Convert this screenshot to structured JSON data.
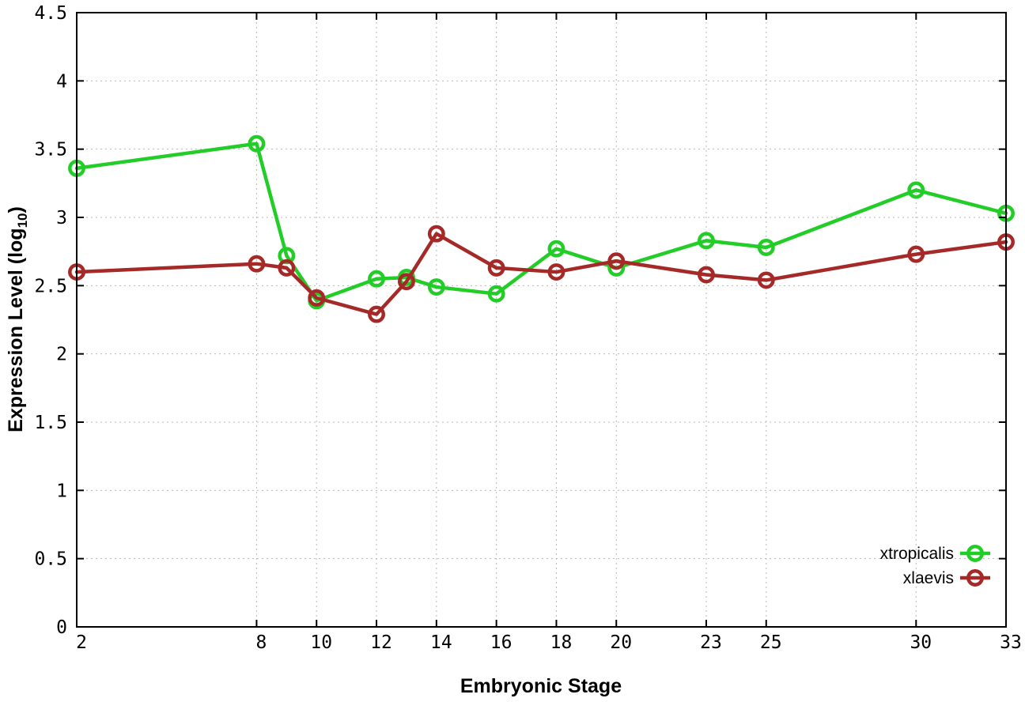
{
  "chart_data": {
    "type": "line",
    "title": "",
    "xlabel": "Embryonic Stage",
    "ylabel": "Expression Level (log10)",
    "ylabel_parts": {
      "prefix": "Expression Level (log",
      "subscript": "10",
      "suffix": ")"
    },
    "x": [
      2,
      8,
      9,
      10,
      12,
      13,
      14,
      16,
      18,
      20,
      23,
      25,
      30,
      33
    ],
    "series": [
      {
        "name": "xtropicalis",
        "color": "#23cd27",
        "values": [
          3.36,
          3.54,
          2.72,
          2.39,
          2.55,
          2.56,
          2.49,
          2.44,
          2.77,
          2.63,
          2.83,
          2.78,
          3.2,
          3.03
        ]
      },
      {
        "name": "xlaevis",
        "color": "#a52a27",
        "values": [
          2.6,
          2.66,
          2.63,
          2.41,
          2.29,
          2.53,
          2.88,
          2.63,
          2.6,
          2.68,
          2.58,
          2.54,
          2.73,
          2.82
        ]
      }
    ],
    "xticks": [
      2,
      8,
      10,
      12,
      14,
      16,
      18,
      20,
      23,
      25,
      30,
      33
    ],
    "yticks": [
      0,
      0.5,
      1,
      1.5,
      2,
      2.5,
      3,
      3.5,
      4,
      4.5
    ],
    "xlim": [
      2,
      33
    ],
    "ylim": [
      0,
      4.5
    ],
    "grid": true,
    "grid_style": "dotted",
    "legend_position": "inside-bottom-right",
    "marker": "open-circle",
    "colors": {
      "background": "#ffffff",
      "axis": "#000000",
      "grid": "#b8b8b8",
      "text": "#000000"
    }
  }
}
